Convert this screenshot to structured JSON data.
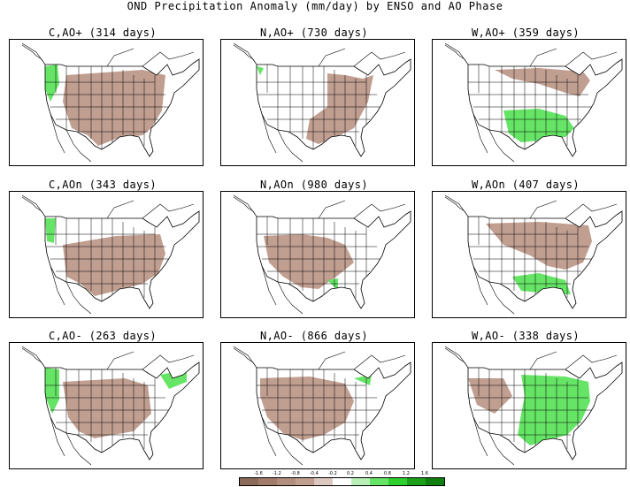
{
  "figure": {
    "title": "OND Precipitation Anomaly (mm/day) by ENSO and AO Phase"
  },
  "colors": {
    "dry_strong": "#a37b6a",
    "dry": "#c09e90",
    "wet": "#66e466",
    "wet_strong": "#2fcf2f",
    "outline": "#000000",
    "grid_empty": "#ffffff"
  },
  "panels": [
    {
      "id": "c-aop",
      "enso": "C",
      "ao": "+",
      "label": "C,AO+ (314 days)",
      "days": 314,
      "ao_sup": "+"
    },
    {
      "id": "n-aop",
      "enso": "N",
      "ao": "+",
      "label": "N,AO+ (730 days)",
      "days": 730,
      "ao_sup": "+"
    },
    {
      "id": "w-aop",
      "enso": "W",
      "ao": "+",
      "label": "W,AO+ (359 days)",
      "days": 359,
      "ao_sup": "+"
    },
    {
      "id": "c-ao0",
      "enso": "C",
      "ao": "n",
      "label": "C,AOn (343 days)",
      "days": 343,
      "ao_sup": "n"
    },
    {
      "id": "n-ao0",
      "enso": "N",
      "ao": "n",
      "label": "N,AOn (980 days)",
      "days": 980,
      "ao_sup": "n"
    },
    {
      "id": "w-ao0",
      "enso": "W",
      "ao": "n",
      "label": "W,AOn (407 days)",
      "days": 407,
      "ao_sup": "n"
    },
    {
      "id": "c-aom",
      "enso": "C",
      "ao": "-",
      "label": "C,AO- (263 days)",
      "days": 263,
      "ao_sup": "−"
    },
    {
      "id": "n-aom",
      "enso": "N",
      "ao": "-",
      "label": "N,AO- (866 days)",
      "days": 866,
      "ao_sup": "−"
    },
    {
      "id": "w-aom",
      "enso": "W",
      "ao": "-",
      "label": "W,AO- (338 days)",
      "days": 338,
      "ao_sup": "−"
    }
  ],
  "colorbar": {
    "labels": [
      "-1.6",
      "-1.2",
      "-0.8",
      "-0.4",
      "-0.2",
      "0.2",
      "0.4",
      "0.8",
      "1.2",
      "1.6"
    ],
    "colors": [
      "#8c6a5a",
      "#a37b6a",
      "#b28e7e",
      "#c09e90",
      "#dcc8bf",
      "#ffffff",
      "#b8f0b8",
      "#66e466",
      "#2fcf2f",
      "#1aa01a",
      "#0f800f"
    ]
  }
}
